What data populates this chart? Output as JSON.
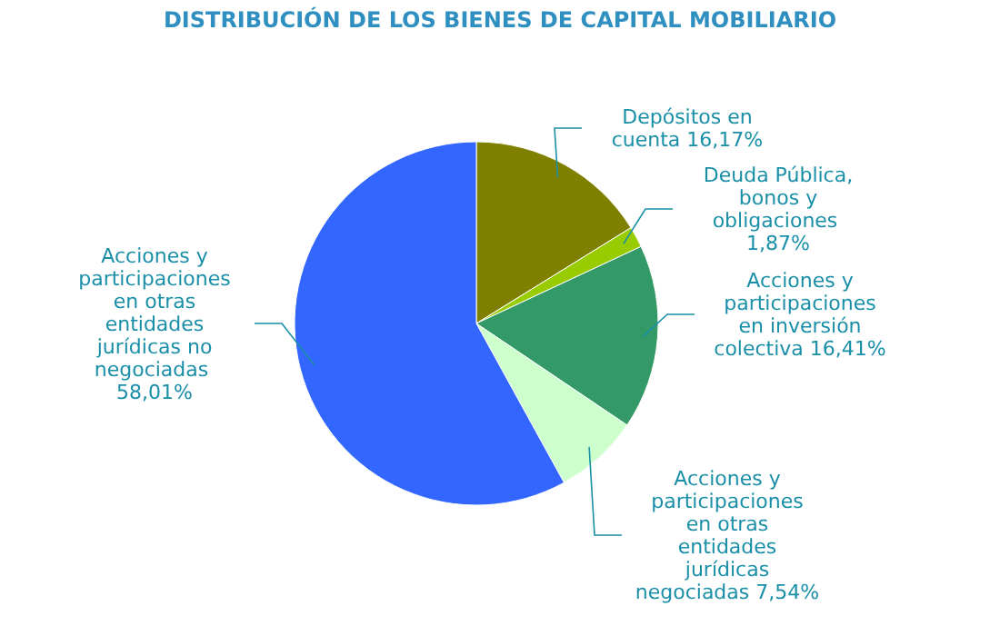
{
  "chart_data": {
    "type": "pie",
    "title": "DISTRIBUCIÓN DE LOS BIENES DE CAPITAL MOBILIARIO",
    "categories": [
      "Depósitos en cuenta",
      "Deuda Pública, bonos y obligaciones",
      "Acciones y participaciones en inversión colectiva",
      "Acciones y participaciones en otras entidades jurídicas negociadas",
      "Acciones y participaciones en otras entidades jurídicas no negociadas"
    ],
    "values": [
      16.17,
      1.87,
      16.41,
      7.54,
      58.01
    ],
    "value_labels": [
      "16,17%",
      "1,87%",
      "16,41%",
      "7,54%",
      "58,01%"
    ],
    "colors": [
      "#808000",
      "#99cc00",
      "#339966",
      "#ccffcc",
      "#3366ff"
    ]
  }
}
